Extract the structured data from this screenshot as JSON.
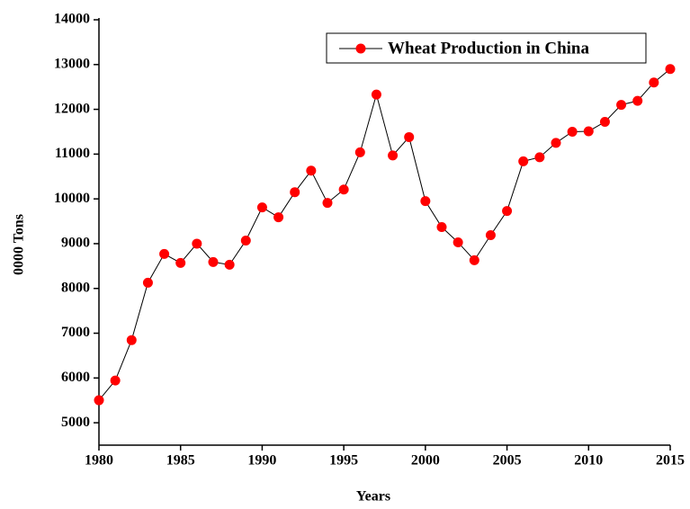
{
  "chart_data": {
    "type": "line",
    "x_label": "Years",
    "y_label": "0000 Tons",
    "x": [
      1980,
      1981,
      1982,
      1983,
      1984,
      1985,
      1986,
      1987,
      1988,
      1989,
      1990,
      1991,
      1992,
      1993,
      1994,
      1995,
      1996,
      1997,
      1998,
      1999,
      2000,
      2001,
      2002,
      2003,
      2004,
      2005,
      2006,
      2007,
      2008,
      2009,
      2010,
      2011,
      2012,
      2013,
      2014,
      2015
    ],
    "series": [
      {
        "name": "Wheat Production in China",
        "color": "#ff0000",
        "values": [
          5503,
          5944,
          6846,
          8128,
          8770,
          8570,
          9000,
          8590,
          8530,
          9070,
          9810,
          9590,
          10150,
          10630,
          9910,
          10210,
          11040,
          12330,
          10970,
          11380,
          9950,
          9370,
          9030,
          8630,
          9190,
          9730,
          10840,
          10930,
          11250,
          11500,
          11510,
          11720,
          12100,
          12190,
          12600,
          12900
        ]
      }
    ],
    "xlim": [
      1980,
      2015
    ],
    "xticks": [
      1980,
      1985,
      1990,
      1995,
      2000,
      2005,
      2010,
      2015
    ],
    "ylim": [
      4500,
      14000
    ],
    "yticks": [
      5000,
      6000,
      7000,
      8000,
      9000,
      10000,
      11000,
      12000,
      13000,
      14000
    ],
    "legend": "top-right"
  }
}
